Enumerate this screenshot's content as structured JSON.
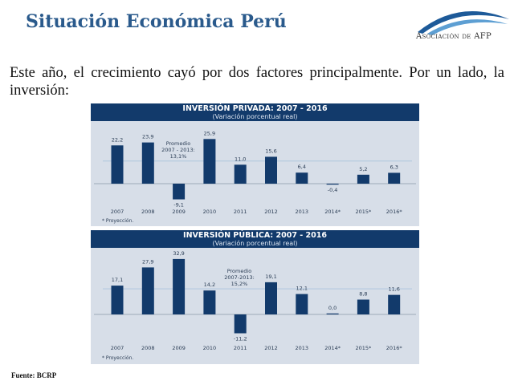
{
  "slide": {
    "title": "Situación Económica Perú",
    "logo_text": "Asociación de AFP",
    "intro": "Este año, el crecimiento cayó por dos factores principalmente. Por un lado, la inversión:",
    "source": "Fuente: BCRP"
  },
  "chart_data": [
    {
      "type": "bar",
      "title": "INVERSIÓN PRIVADA: 2007 - 2016",
      "subtitle": "(Variación porcentual real)",
      "categories": [
        "2007",
        "2008",
        "2009",
        "2010",
        "2011",
        "2012",
        "2013",
        "2014*",
        "2015*",
        "2016*"
      ],
      "values": [
        22.2,
        23.9,
        -9.1,
        25.9,
        11.0,
        15.6,
        6.4,
        -0.4,
        5.2,
        6.3
      ],
      "data_labels": [
        "22,2",
        "23,9",
        "-9,1",
        "25,9",
        "11,0",
        "15,6",
        "6,4",
        "-0,4",
        "5,2",
        "6,3"
      ],
      "average": {
        "value": 13.1,
        "label_lines": [
          "Promedio",
          "2007 - 2013:",
          "13,1%"
        ]
      },
      "footnote": "* Proyección.",
      "bar_color": "#123a6b",
      "grid": false
    },
    {
      "type": "bar",
      "title": "INVERSIÓN PÚBLICA: 2007 - 2016",
      "subtitle": "(Variación porcentual real)",
      "categories": [
        "2007",
        "2008",
        "2009",
        "2010",
        "2011",
        "2012",
        "2013",
        "2014*",
        "2015*",
        "2016*"
      ],
      "values": [
        17.1,
        27.9,
        32.9,
        14.2,
        -11.2,
        19.1,
        12.1,
        0.0,
        8.8,
        11.6
      ],
      "data_labels": [
        "17,1",
        "27,9",
        "32,9",
        "14,2",
        "-11,2",
        "19,1",
        "12,1",
        "0,0",
        "8,8",
        "11,6"
      ],
      "average": {
        "value": 15.2,
        "label_lines": [
          "Promedio",
          "2007-2013:",
          "15,2%"
        ]
      },
      "footnote": "* Proyección.",
      "bar_color": "#123a6b",
      "grid": false
    }
  ]
}
